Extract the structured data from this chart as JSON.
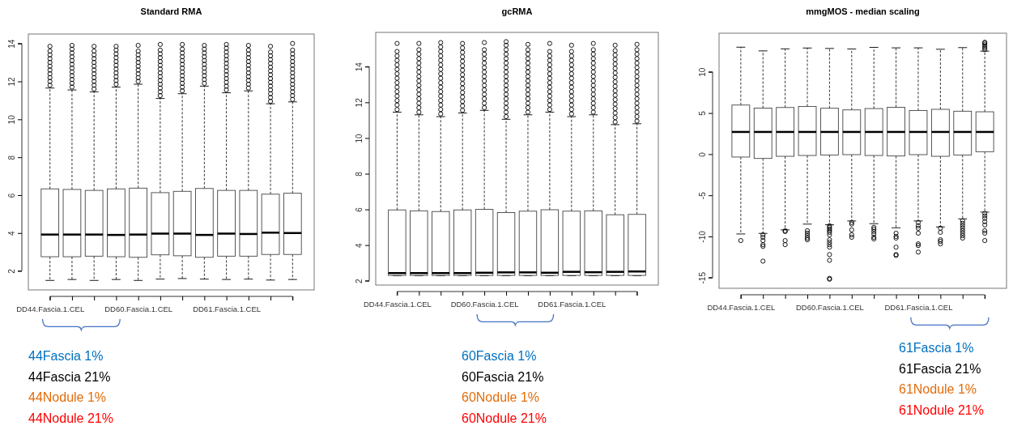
{
  "chart_data": [
    {
      "type": "box",
      "title": "Standard RMA",
      "categories": [
        "DD44.Fascia.1.CEL",
        null,
        null,
        null,
        "DD60.Fascia.1.CEL",
        null,
        null,
        null,
        "DD61.Fascia.1.CEL",
        null,
        null,
        null
      ],
      "ylim": [
        1,
        14.5
      ],
      "yticks": [
        2,
        4,
        6,
        8,
        10,
        12,
        14
      ],
      "boxes": [
        {
          "low": 1.5,
          "q1": 2.75,
          "median": 3.92,
          "q3": 6.33,
          "high": 11.65,
          "outliers": [
            11.8,
            12.0,
            12.2,
            12.4,
            12.6,
            12.8,
            13.0,
            13.2,
            13.4,
            13.6,
            13.85
          ]
        },
        {
          "low": 1.55,
          "q1": 2.75,
          "median": 3.92,
          "q3": 6.3,
          "high": 11.55,
          "outliers": [
            11.7,
            11.9,
            12.1,
            12.3,
            12.5,
            12.7,
            12.9,
            13.1,
            13.3,
            13.5,
            13.7,
            13.9
          ]
        },
        {
          "low": 1.5,
          "q1": 2.78,
          "median": 3.92,
          "q3": 6.25,
          "high": 11.45,
          "outliers": [
            11.6,
            11.8,
            12.0,
            12.2,
            12.4,
            12.6,
            12.8,
            13.0,
            13.2,
            13.4,
            13.6,
            13.85
          ]
        },
        {
          "low": 1.55,
          "q1": 2.75,
          "median": 3.9,
          "q3": 6.33,
          "high": 11.7,
          "outliers": [
            11.85,
            12.05,
            12.25,
            12.45,
            12.65,
            12.85,
            13.05,
            13.25,
            13.45,
            13.65,
            13.85
          ]
        },
        {
          "low": 1.5,
          "q1": 2.72,
          "median": 3.92,
          "q3": 6.37,
          "high": 11.85,
          "outliers": [
            12.0,
            12.2,
            12.4,
            12.6,
            12.8,
            13.0,
            13.2,
            13.4,
            13.6,
            13.9
          ]
        },
        {
          "low": 1.57,
          "q1": 2.85,
          "median": 3.97,
          "q3": 6.13,
          "high": 11.1,
          "outliers": [
            11.25,
            11.45,
            11.65,
            11.85,
            12.05,
            12.25,
            12.45,
            12.65,
            12.85,
            13.05,
            13.25,
            13.45,
            13.65,
            13.95
          ]
        },
        {
          "low": 1.6,
          "q1": 2.8,
          "median": 3.97,
          "q3": 6.2,
          "high": 11.35,
          "outliers": [
            11.5,
            11.7,
            11.9,
            12.1,
            12.3,
            12.5,
            12.7,
            12.9,
            13.1,
            13.3,
            13.5,
            13.7,
            13.95
          ]
        },
        {
          "low": 1.57,
          "q1": 2.72,
          "median": 3.9,
          "q3": 6.35,
          "high": 11.75,
          "outliers": [
            11.9,
            12.1,
            12.3,
            12.5,
            12.7,
            12.9,
            13.1,
            13.3,
            13.5,
            13.7,
            13.9
          ]
        },
        {
          "low": 1.55,
          "q1": 2.78,
          "median": 3.97,
          "q3": 6.25,
          "high": 11.4,
          "outliers": [
            11.55,
            11.75,
            11.95,
            12.15,
            12.35,
            12.55,
            12.75,
            12.95,
            13.15,
            13.35,
            13.55,
            13.75,
            13.95
          ]
        },
        {
          "low": 1.57,
          "q1": 2.78,
          "median": 3.95,
          "q3": 6.25,
          "high": 11.5,
          "outliers": [
            11.65,
            11.85,
            12.05,
            12.25,
            12.45,
            12.65,
            12.85,
            13.05,
            13.25,
            13.45,
            13.65,
            13.9
          ]
        },
        {
          "low": 1.52,
          "q1": 2.87,
          "median": 4.02,
          "q3": 6.05,
          "high": 10.82,
          "outliers": [
            10.95,
            11.15,
            11.35,
            11.55,
            11.75,
            11.95,
            12.15,
            12.35,
            12.55,
            12.75,
            12.95,
            13.15,
            13.35,
            13.55,
            13.85
          ]
        },
        {
          "low": 1.55,
          "q1": 2.87,
          "median": 4.0,
          "q3": 6.1,
          "high": 10.92,
          "outliers": [
            11.05,
            11.25,
            11.45,
            11.65,
            11.85,
            12.05,
            12.25,
            12.45,
            12.65,
            12.85,
            13.05,
            13.25,
            13.45,
            13.65,
            14.0
          ]
        }
      ],
      "annotations": [
        "44Fascia 1%",
        "44Fascia 21%",
        "44Nodule 1%",
        "44Nodule 21%"
      ]
    },
    {
      "type": "box",
      "title": "gcRMA",
      "categories": [
        "DD44.Fascia.1.CEL",
        null,
        null,
        null,
        "DD60.Fascia.1.CEL",
        null,
        null,
        null,
        "DD61.Fascia.1.CEL",
        null,
        null,
        null
      ],
      "ylim": [
        1.76,
        15.92
      ],
      "yticks": [
        2,
        4,
        6,
        8,
        10,
        12,
        14
      ],
      "boxes": [
        {
          "low": 2.28,
          "q1": 2.3,
          "median": 2.43,
          "q3": 5.97,
          "high": 11.45,
          "outliers": [
            11.6,
            11.85,
            12.1,
            12.35,
            12.6,
            12.85,
            13.1,
            13.35,
            13.6,
            13.85,
            14.1,
            14.35,
            14.6,
            14.85,
            15.3
          ]
        },
        {
          "low": 2.28,
          "q1": 2.3,
          "median": 2.43,
          "q3": 5.92,
          "high": 11.3,
          "outliers": [
            11.45,
            11.7,
            11.95,
            12.2,
            12.45,
            12.7,
            12.95,
            13.2,
            13.45,
            13.7,
            13.95,
            14.2,
            14.45,
            14.7,
            14.95,
            15.3
          ]
        },
        {
          "low": 2.28,
          "q1": 2.3,
          "median": 2.43,
          "q3": 5.88,
          "high": 11.2,
          "outliers": [
            11.35,
            11.6,
            11.85,
            12.1,
            12.35,
            12.6,
            12.85,
            13.1,
            13.35,
            13.6,
            13.85,
            14.1,
            14.35,
            14.6,
            14.85,
            15.1,
            15.35
          ]
        },
        {
          "low": 2.28,
          "q1": 2.3,
          "median": 2.43,
          "q3": 5.97,
          "high": 11.4,
          "outliers": [
            11.55,
            11.8,
            12.05,
            12.3,
            12.55,
            12.8,
            13.05,
            13.3,
            13.55,
            13.8,
            14.05,
            14.3,
            14.55,
            14.8,
            15.05,
            15.3
          ]
        },
        {
          "low": 2.28,
          "q1": 2.3,
          "median": 2.45,
          "q3": 6.0,
          "high": 11.55,
          "outliers": [
            11.7,
            11.95,
            12.2,
            12.45,
            12.7,
            12.95,
            13.2,
            13.45,
            13.7,
            13.95,
            14.2,
            14.45,
            14.7,
            14.95,
            15.35
          ]
        },
        {
          "low": 2.28,
          "q1": 2.3,
          "median": 2.47,
          "q3": 5.82,
          "high": 11.05,
          "outliers": [
            11.2,
            11.45,
            11.7,
            11.95,
            12.2,
            12.45,
            12.7,
            12.95,
            13.2,
            13.45,
            13.7,
            13.95,
            14.2,
            14.45,
            14.7,
            14.95,
            15.2,
            15.4
          ]
        },
        {
          "low": 2.28,
          "q1": 2.3,
          "median": 2.47,
          "q3": 5.9,
          "high": 11.3,
          "outliers": [
            11.45,
            11.7,
            11.95,
            12.2,
            12.45,
            12.7,
            12.95,
            13.2,
            13.45,
            13.7,
            13.95,
            14.2,
            14.45,
            14.7,
            14.95,
            15.25
          ]
        },
        {
          "low": 2.28,
          "q1": 2.3,
          "median": 2.45,
          "q3": 5.98,
          "high": 11.45,
          "outliers": [
            11.6,
            11.85,
            12.1,
            12.35,
            12.6,
            12.85,
            13.1,
            13.35,
            13.6,
            13.85,
            14.1,
            14.35,
            14.6,
            14.85,
            15.3
          ]
        },
        {
          "low": 2.28,
          "q1": 2.3,
          "median": 2.5,
          "q3": 5.9,
          "high": 11.2,
          "outliers": [
            11.35,
            11.6,
            11.85,
            12.1,
            12.35,
            12.6,
            12.85,
            13.1,
            13.35,
            13.6,
            13.85,
            14.1,
            14.35,
            14.6,
            14.85,
            15.2
          ]
        },
        {
          "low": 2.28,
          "q1": 2.3,
          "median": 2.48,
          "q3": 5.92,
          "high": 11.3,
          "outliers": [
            11.45,
            11.7,
            11.95,
            12.2,
            12.45,
            12.7,
            12.95,
            13.2,
            13.45,
            13.7,
            13.95,
            14.2,
            14.45,
            14.7,
            14.95,
            15.3
          ]
        },
        {
          "low": 2.28,
          "q1": 2.3,
          "median": 2.5,
          "q3": 5.7,
          "high": 10.75,
          "outliers": [
            10.9,
            11.15,
            11.4,
            11.65,
            11.9,
            12.15,
            12.4,
            12.65,
            12.9,
            13.15,
            13.4,
            13.65,
            13.9,
            14.15,
            14.4,
            14.65,
            14.9,
            15.2
          ]
        },
        {
          "low": 2.28,
          "q1": 2.3,
          "median": 2.52,
          "q3": 5.72,
          "high": 10.8,
          "outliers": [
            10.95,
            11.2,
            11.45,
            11.7,
            11.95,
            12.2,
            12.45,
            12.7,
            12.95,
            13.2,
            13.45,
            13.7,
            13.95,
            14.2,
            14.45,
            14.7,
            14.95,
            15.25
          ]
        }
      ],
      "annotations": [
        "60Fascia 1%",
        "60Fascia 21%",
        "60Nodule 1%",
        "60Nodule 21%"
      ]
    },
    {
      "type": "box",
      "title": "mmgMOS - median scaling",
      "categories": [
        "DD44.Fascia.1.CEL",
        null,
        null,
        null,
        "DD60.Fascia.1.CEL",
        null,
        null,
        null,
        "DD61.Fascia.1.CEL",
        null,
        null,
        null
      ],
      "ylim": [
        -16.3,
        14.7
      ],
      "yticks": [
        -15,
        -10,
        -5,
        0,
        5,
        10
      ],
      "boxes": [
        {
          "low": -9.7,
          "q1": -0.35,
          "median": 2.7,
          "q3": 5.97,
          "high": 13.0,
          "outliers": [
            -10.5
          ]
        },
        {
          "low": -9.63,
          "q1": -0.52,
          "median": 2.7,
          "q3": 5.6,
          "high": 12.55,
          "outliers": [
            -9.8,
            -10.1,
            -10.5,
            -11.0,
            -11.2,
            -13.0
          ]
        },
        {
          "low": -9.2,
          "q1": -0.26,
          "median": 2.7,
          "q3": 5.67,
          "high": 12.8,
          "outliers": [
            -9.3,
            -9.4,
            -10.5,
            -11.0
          ]
        },
        {
          "low": -8.5,
          "q1": -0.16,
          "median": 2.7,
          "q3": 5.8,
          "high": 12.9,
          "outliers": [
            -9.3,
            -9.6,
            -9.9,
            -10.2,
            -10.4
          ]
        },
        {
          "low": -8.58,
          "q1": -0.1,
          "median": 2.7,
          "q3": 5.58,
          "high": 12.85,
          "outliers": [
            -8.7,
            -8.9,
            -9.1,
            -9.3,
            -9.5,
            -9.8,
            -10.4,
            -10.7,
            -11.0,
            -11.3,
            -12.2,
            -12.9,
            -15.1,
            -15.2
          ]
        },
        {
          "low": -8.12,
          "q1": -0.06,
          "median": 2.7,
          "q3": 5.38,
          "high": 12.78,
          "outliers": [
            -8.3,
            -8.5,
            -9.2,
            -9.8,
            -10.1
          ]
        },
        {
          "low": -8.45,
          "q1": -0.16,
          "median": 2.7,
          "q3": 5.54,
          "high": 12.98,
          "outliers": [
            -8.9,
            -9.1,
            -9.4,
            -9.7,
            -10.1,
            -10.3
          ]
        },
        {
          "low": -8.95,
          "q1": -0.22,
          "median": 2.7,
          "q3": 5.7,
          "high": 12.92,
          "outliers": [
            -9.6,
            -10.0,
            -10.2,
            -11.3,
            -12.2,
            -12.3
          ]
        },
        {
          "low": -8.12,
          "q1": -0.06,
          "median": 2.7,
          "q3": 5.31,
          "high": 12.92,
          "outliers": [
            -8.3,
            -8.7,
            -9.0,
            -9.6,
            -10.9,
            -11.1,
            -11.9
          ]
        },
        {
          "low": -8.84,
          "q1": -0.26,
          "median": 2.7,
          "q3": 5.45,
          "high": 12.75,
          "outliers": [
            -9.0,
            -9.5,
            -10.4,
            -10.6,
            -10.9
          ]
        },
        {
          "low": -7.86,
          "q1": -0.1,
          "median": 2.7,
          "q3": 5.22,
          "high": 12.95,
          "outliers": [
            -8.1,
            -8.4,
            -8.7,
            -9.0,
            -9.3,
            -9.6,
            -9.9,
            -10.2
          ]
        },
        {
          "low": -7.04,
          "q1": 0.3,
          "median": 2.7,
          "q3": 5.15,
          "high": 12.52,
          "outliers": [
            -7.2,
            -7.5,
            -7.8,
            -8.2,
            -8.6,
            -9.3,
            -9.6,
            -10.5,
            12.7,
            12.9,
            13.1,
            13.3,
            13.5,
            13.6
          ]
        }
      ],
      "annotations": [
        "61Fascia 1%",
        "61Fascia 21%",
        "61Nodule 1%",
        "61Nodule 21%"
      ]
    }
  ]
}
